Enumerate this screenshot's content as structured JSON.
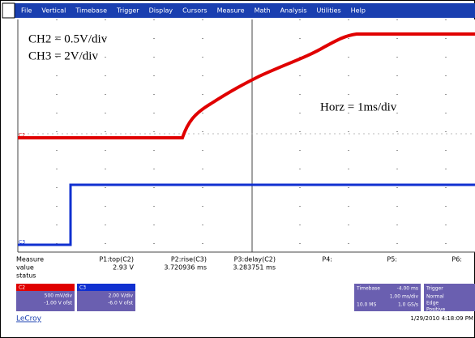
{
  "menu": [
    "File",
    "Vertical",
    "Timebase",
    "Trigger",
    "Display",
    "Cursors",
    "Measure",
    "Math",
    "Analysis",
    "Utilities",
    "Help"
  ],
  "annotations": {
    "ch2": "CH2 = 0.5V/div",
    "ch3": "CH3 = 2V/div",
    "horz": "Horz = 1ms/div"
  },
  "trace_labels": [
    "C2",
    "C3"
  ],
  "measure": {
    "headers": [
      "Measure",
      "value",
      "status"
    ],
    "params": [
      {
        "name": "P1:top(C2)",
        "value": "2.93 V"
      },
      {
        "name": "P2:rise(C3)",
        "value": "3.720936 ms"
      },
      {
        "name": "P3:delay(C2)",
        "value": "3.283751 ms"
      },
      {
        "name": "P4:",
        "value": ""
      },
      {
        "name": "P5:",
        "value": ""
      },
      {
        "name": "P6:",
        "value": ""
      }
    ]
  },
  "channels": [
    {
      "label": "C2",
      "lines": [
        "500 mV/div",
        "-1.00 V ofst"
      ]
    },
    {
      "label": "C3",
      "lines": [
        "2.00 V/div",
        "-6.0 V ofst"
      ]
    }
  ],
  "timebase": {
    "title": "Timebase",
    "value": "-4.00 ms",
    "lines": [
      "1.00 ms/div",
      "10.0 MS",
      "1.0 GS/s"
    ]
  },
  "trigger": {
    "title": "Trigger",
    "lines": [
      "Normal",
      "Edge",
      "Positive"
    ]
  },
  "brand": "LeCroy",
  "timestamp": "1/29/2010 4:18:09 PM"
}
